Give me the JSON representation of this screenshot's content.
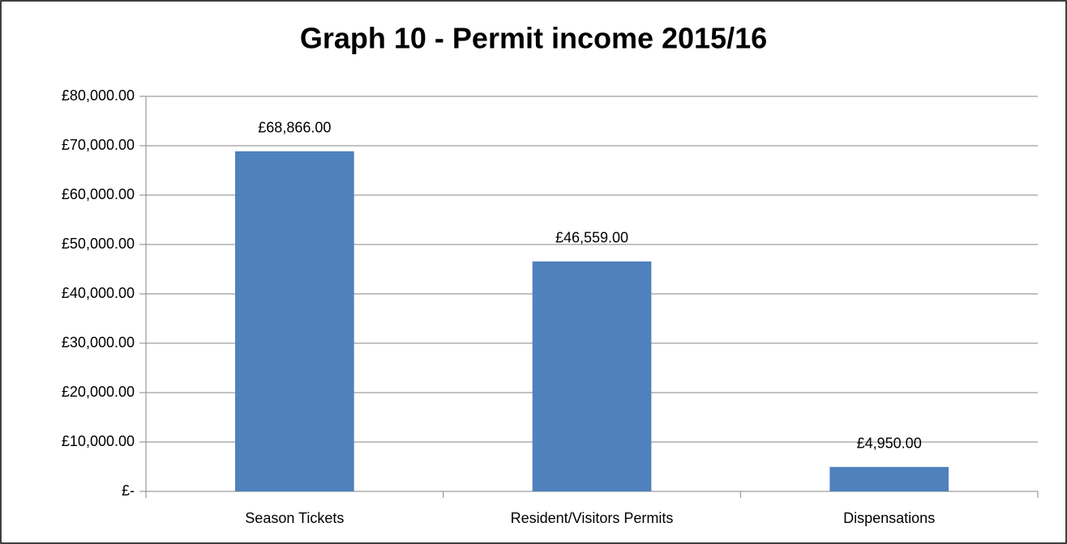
{
  "chart_data": {
    "type": "bar",
    "title": "Graph 10 - Permit income 2015/16",
    "categories": [
      "Season Tickets",
      "Resident/Visitors Permits",
      "Dispensations"
    ],
    "values": [
      68866,
      46559,
      4950
    ],
    "value_labels": [
      "£68,866.00",
      "£46,559.00",
      "£4,950.00"
    ],
    "color": "#4f81bd",
    "ylim": [
      0,
      80000
    ],
    "yticks": [
      {
        "value": 0,
        "label": "£-"
      },
      {
        "value": 10000,
        "label": "£10,000.00"
      },
      {
        "value": 20000,
        "label": "£20,000.00"
      },
      {
        "value": 30000,
        "label": "£30,000.00"
      },
      {
        "value": 40000,
        "label": "£40,000.00"
      },
      {
        "value": 50000,
        "label": "£50,000.00"
      },
      {
        "value": 60000,
        "label": "£60,000.00"
      },
      {
        "value": 70000,
        "label": "£70,000.00"
      },
      {
        "value": 80000,
        "label": "£80,000.00"
      }
    ],
    "grid": true
  }
}
